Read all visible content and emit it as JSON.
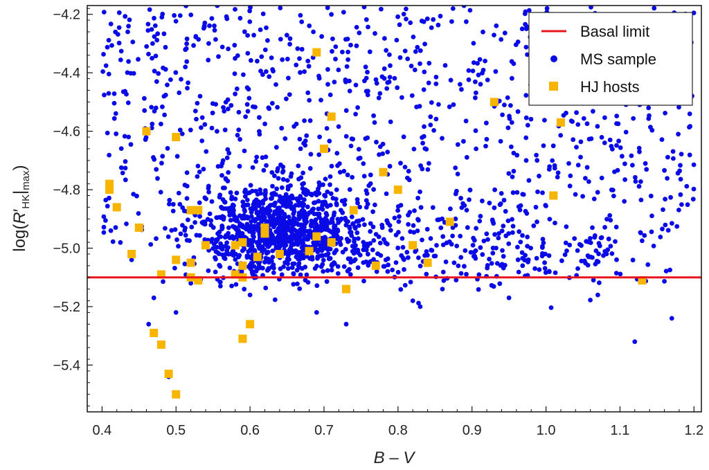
{
  "chart_data": {
    "type": "scatter",
    "xlabel": "B – V",
    "ylabel": "log(R′HK|max)",
    "ylabel_parts": {
      "prefix": "log(",
      "R": "R",
      "prime": "′",
      "sub_hk": "HK",
      "bar": "|",
      "sub_max": "max",
      "suffix": ")"
    },
    "xlim": [
      0.38,
      1.21
    ],
    "ylim": [
      -5.56,
      -4.17
    ],
    "x_ticks": [
      0.4,
      0.5,
      0.6,
      0.7,
      0.8,
      0.9,
      1.0,
      1.1,
      1.2
    ],
    "x_tick_labels": [
      "0.4",
      "0.5",
      "0.6",
      "0.7",
      "0.8",
      "0.9",
      "1.0",
      "1.1",
      "1.2"
    ],
    "y_ticks": [
      -5.4,
      -5.2,
      -5.0,
      -4.8,
      -4.6,
      -4.4,
      -4.2
    ],
    "y_tick_labels": [
      "−5.4",
      "−5.2",
      "−5.0",
      "−4.8",
      "−4.6",
      "−4.4",
      "−4.2"
    ],
    "grid": false,
    "legend_position": "top-right",
    "legend": [
      {
        "label": "Basal limit",
        "marker": "line",
        "color": "#e8141c"
      },
      {
        "label": "MS sample",
        "marker": "circle",
        "color": "#0a0ae6"
      },
      {
        "label": "HJ hosts",
        "marker": "square",
        "color": "#f7b500"
      }
    ],
    "basal_limit": {
      "y": -5.1,
      "color": "#e8141c"
    },
    "ms_sample": {
      "color": "#0a0ae6",
      "approx_count": 2200,
      "bv_range": [
        0.4,
        1.2
      ],
      "logR_range": [
        -5.45,
        -4.17
      ],
      "note_dense_region": {
        "bv": [
          0.52,
          0.78
        ],
        "logR": [
          -5.05,
          -4.75
        ]
      }
    },
    "hj_hosts": {
      "color": "#f7b500",
      "points": [
        {
          "x": 0.41,
          "y": -4.78
        },
        {
          "x": 0.41,
          "y": -4.8
        },
        {
          "x": 0.42,
          "y": -4.86
        },
        {
          "x": 0.44,
          "y": -5.02
        },
        {
          "x": 0.45,
          "y": -4.93
        },
        {
          "x": 0.46,
          "y": -4.6
        },
        {
          "x": 0.47,
          "y": -5.29
        },
        {
          "x": 0.48,
          "y": -5.09
        },
        {
          "x": 0.48,
          "y": -5.33
        },
        {
          "x": 0.49,
          "y": -5.43
        },
        {
          "x": 0.5,
          "y": -5.5
        },
        {
          "x": 0.5,
          "y": -4.62
        },
        {
          "x": 0.5,
          "y": -5.04
        },
        {
          "x": 0.52,
          "y": -4.87
        },
        {
          "x": 0.52,
          "y": -5.05
        },
        {
          "x": 0.52,
          "y": -5.1
        },
        {
          "x": 0.53,
          "y": -4.87
        },
        {
          "x": 0.53,
          "y": -5.11
        },
        {
          "x": 0.54,
          "y": -4.99
        },
        {
          "x": 0.58,
          "y": -4.99
        },
        {
          "x": 0.58,
          "y": -5.09
        },
        {
          "x": 0.59,
          "y": -4.98
        },
        {
          "x": 0.59,
          "y": -5.06
        },
        {
          "x": 0.59,
          "y": -5.1
        },
        {
          "x": 0.59,
          "y": -5.31
        },
        {
          "x": 0.6,
          "y": -5.26
        },
        {
          "x": 0.61,
          "y": -5.03
        },
        {
          "x": 0.62,
          "y": -4.93
        },
        {
          "x": 0.62,
          "y": -4.95
        },
        {
          "x": 0.64,
          "y": -5.02
        },
        {
          "x": 0.68,
          "y": -5.01
        },
        {
          "x": 0.69,
          "y": -4.33
        },
        {
          "x": 0.69,
          "y": -4.96
        },
        {
          "x": 0.7,
          "y": -4.66
        },
        {
          "x": 0.71,
          "y": -4.55
        },
        {
          "x": 0.71,
          "y": -4.98
        },
        {
          "x": 0.73,
          "y": -5.14
        },
        {
          "x": 0.74,
          "y": -4.87
        },
        {
          "x": 0.77,
          "y": -5.06
        },
        {
          "x": 0.78,
          "y": -4.74
        },
        {
          "x": 0.8,
          "y": -4.8
        },
        {
          "x": 0.82,
          "y": -4.99
        },
        {
          "x": 0.84,
          "y": -5.05
        },
        {
          "x": 0.87,
          "y": -4.91
        },
        {
          "x": 0.93,
          "y": -4.5
        },
        {
          "x": 1.01,
          "y": -4.82
        },
        {
          "x": 1.02,
          "y": -4.57
        },
        {
          "x": 1.13,
          "y": -5.11
        }
      ]
    }
  }
}
